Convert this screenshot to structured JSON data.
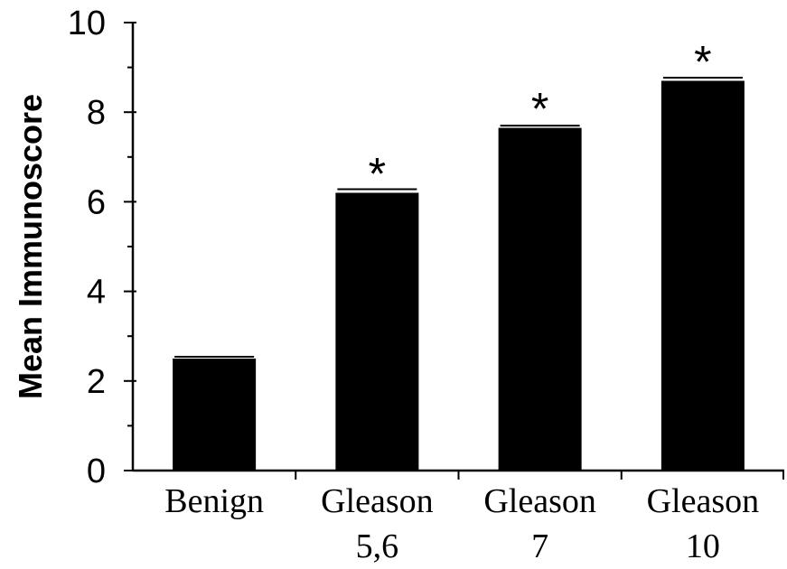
{
  "chart_data": {
    "type": "bar",
    "categories": [
      [
        "Benign"
      ],
      [
        "Gleason",
        "5,6"
      ],
      [
        "Gleason",
        "7"
      ],
      [
        "Gleason",
        "10"
      ]
    ],
    "values": [
      2.5,
      6.2,
      7.65,
      8.7
    ],
    "errors": [
      0.04,
      0.08,
      0.05,
      0.07
    ],
    "significance": [
      "",
      "*",
      "*",
      "*"
    ],
    "ylabel": "Mean Immunoscore",
    "xlabel": "",
    "ylim": [
      0,
      10
    ],
    "yticks": [
      0,
      2,
      4,
      6,
      8,
      10
    ],
    "bar_color": "#000000",
    "grid": false,
    "legend": "none"
  }
}
